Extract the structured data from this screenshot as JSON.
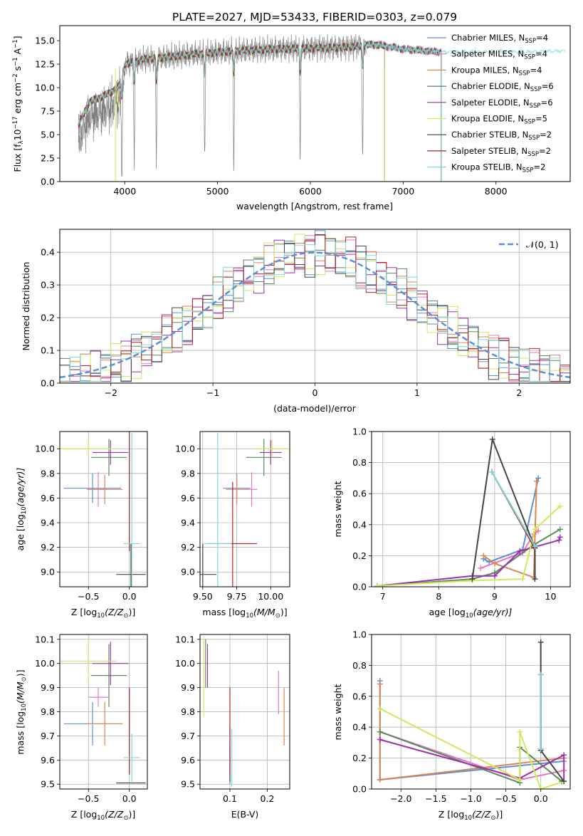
{
  "figure_title": "PLATE=2027, MJD=53433, FIBERID=0303, z=0.079",
  "colors": {
    "Chabrier MILES": "#5b8fd8",
    "Salpeter MILES": "#e377c2",
    "Kroupa MILES": "#dd8452",
    "Chabrier ELODIE": "#5a8a5a",
    "Salpeter ELODIE": "#9b30b0",
    "Kroupa ELODIE": "#d0e85a",
    "Chabrier STELIB": "#444444",
    "Salpeter STELIB": "#b22222",
    "Kroupa STELIB": "#7fd8d8",
    "data": "#808080",
    "gauss": "#5b8fd8",
    "grid": "#b0b0b0"
  },
  "chart_data": [
    {
      "id": "spectrum",
      "type": "line",
      "title": "PLATE=2027, MJD=53433, FIBERID=0303, z=0.079",
      "xlabel": "wavelength [Angstrom, rest frame]",
      "ylabel_main": "Flux [f",
      "ylabel_sub": "λ",
      "ylabel_rest": "10",
      "ylabel_sup1": "−17",
      "ylabel_tail": " erg cm",
      "ylabel_sup2": "−2",
      "ylabel_tail2": " s",
      "ylabel_sup3": "−1",
      "ylabel_tail3": " A",
      "ylabel_sup4": "−1",
      "ylabel_end": "]",
      "xlim": [
        3300,
        8800
      ],
      "ylim": [
        0,
        16.6
      ],
      "grid": false,
      "legend_position": "right",
      "xticks": [
        4000,
        5000,
        6000,
        7000,
        8000
      ],
      "yticks": [
        0.0,
        2.5,
        5.0,
        7.5,
        10.0,
        12.5,
        15.0
      ],
      "series": [
        {
          "name": "Chabrier MILES",
          "nssp": "4"
        },
        {
          "name": "Salpeter MILES",
          "nssp": "4"
        },
        {
          "name": "Kroupa MILES",
          "nssp": "4"
        },
        {
          "name": "Chabrier ELODIE",
          "nssp": "6"
        },
        {
          "name": "Salpeter ELODIE",
          "nssp": "6"
        },
        {
          "name": "Kroupa ELODIE",
          "nssp": "5"
        },
        {
          "name": "Chabrier STELIB",
          "nssp": "2"
        },
        {
          "name": "Salpeter STELIB",
          "nssp": "2"
        },
        {
          "name": "Kroupa STELIB",
          "nssp": "2"
        }
      ],
      "continuum": [
        [
          3500,
          6.0
        ],
        [
          3620,
          8.5
        ],
        [
          3750,
          9.0
        ],
        [
          3850,
          9.5
        ],
        [
          3950,
          10.3
        ],
        [
          4000,
          12.5
        ],
        [
          4200,
          13.0
        ],
        [
          4500,
          13.3
        ],
        [
          4800,
          13.6
        ],
        [
          5200,
          13.9
        ],
        [
          5600,
          14.1
        ],
        [
          6000,
          14.2
        ],
        [
          6400,
          14.3
        ],
        [
          6700,
          14.6
        ],
        [
          7000,
          14.1
        ],
        [
          7400,
          13.8
        ],
        [
          7800,
          13.8
        ],
        [
          8300,
          13.8
        ],
        [
          8700,
          13.9
        ]
      ],
      "data_range": [
        3500,
        6600
      ],
      "model_ranges": {
        "MILES": [
          3500,
          7410
        ],
        "ELODIE": [
          3500,
          6800
        ],
        "STELIB": [
          3500,
          7410
        ]
      },
      "dips": [
        [
          3933,
          2.0,
          "ELODIE"
        ],
        [
          3968,
          3.0,
          "all"
        ],
        [
          4102,
          10.8,
          "all"
        ],
        [
          4340,
          11.5,
          "all"
        ],
        [
          4861,
          13.0,
          "all"
        ],
        [
          5175,
          13.2,
          "all"
        ],
        [
          5890,
          13.0,
          "all"
        ],
        [
          6563,
          12.6,
          "all"
        ]
      ],
      "cutoffs": [
        [
          3900,
          "Kroupa ELODIE"
        ],
        [
          6800,
          "Kroupa ELODIE"
        ],
        [
          7410,
          "STELIB"
        ]
      ]
    },
    {
      "id": "residuals",
      "type": "histogram",
      "xlabel": "(data-model)/error",
      "ylabel": "Normed distribution",
      "xlim": [
        -2.5,
        2.5
      ],
      "ylim": [
        0,
        0.47
      ],
      "grid": true,
      "legend_position": "top-right",
      "legend_label": "𝒩(0, 1)",
      "xticks": [
        -2,
        -1,
        0,
        1,
        2
      ],
      "xticklabels": [
        "−2",
        "−1",
        "0",
        "1",
        "2"
      ],
      "yticks": [
        0.0,
        0.1,
        0.2,
        0.3,
        0.4
      ],
      "bin_width": 0.1,
      "bin_start": -2.5
    },
    {
      "id": "age_vs_Z",
      "type": "scatter",
      "xlabel_pre": "Z [log",
      "xlabel_sub": "10",
      "xlabel_post": "(Z/Z",
      "xlabel_sun": "⊙",
      "xlabel_end": ")]",
      "ylabel_pre": "age  [log",
      "ylabel_sub": "10",
      "ylabel_post": "(age/yr)]",
      "xlim": [
        -0.85,
        0.22
      ],
      "ylim": [
        8.88,
        10.14
      ],
      "grid": true,
      "xticks": [
        -0.5,
        0.0
      ],
      "xticklabels": [
        "−0.5",
        "0.0"
      ],
      "yticks": [
        9.0,
        9.2,
        9.4,
        9.6,
        9.8,
        10.0
      ],
      "points": [
        {
          "series": "Chabrier MILES",
          "x": -0.45,
          "xerr": 0.35,
          "y": 9.68,
          "yerr": 0.12
        },
        {
          "series": "Salpeter MILES",
          "x": -0.38,
          "xerr": 0.12,
          "y": 9.67,
          "yerr": 0.14
        },
        {
          "series": "Kroupa MILES",
          "x": -0.3,
          "xerr": 0.22,
          "y": 9.67,
          "yerr": 0.12
        },
        {
          "series": "Chabrier ELODIE",
          "x": -0.25,
          "xerr": 0.22,
          "y": 9.93,
          "yerr": 0.15
        },
        {
          "series": "Salpeter ELODIE",
          "x": -0.23,
          "xerr": 0.22,
          "y": 9.97,
          "yerr": 0.1
        },
        {
          "series": "Kroupa ELODIE",
          "x": -0.5,
          "xerr": 0.35,
          "y": 10.0,
          "yerr": 0.07
        },
        {
          "series": "Chabrier STELIB",
          "x": 0.02,
          "xerr": 0.18,
          "y": 8.98,
          "yerr": 0.25
        },
        {
          "series": "Salpeter STELIB",
          "x": 0.0,
          "xerr": 0.0,
          "y": 9.67,
          "yerr": 0.5
        },
        {
          "series": "Kroupa STELIB",
          "x": 0.03,
          "xerr": 0.1,
          "y": 9.23,
          "yerr": 0.9
        }
      ]
    },
    {
      "id": "age_vs_mass",
      "type": "scatter",
      "xlabel_pre": "mass [log",
      "xlabel_sub": "10",
      "xlabel_post": "(M/M",
      "xlabel_sun": "⊙",
      "xlabel_end": ")]",
      "xlim": [
        9.48,
        10.14
      ],
      "ylim": [
        8.88,
        10.14
      ],
      "grid": true,
      "xticks": [
        9.5,
        9.75,
        10.0
      ],
      "xticklabels": [
        "9.50",
        "9.75",
        "10.00"
      ],
      "yticks": [
        9.0,
        9.2,
        9.4,
        9.6,
        9.8,
        10.0
      ],
      "points": [
        {
          "series": "Chabrier MILES",
          "x": 9.75,
          "xerr": 0.1,
          "y": 9.68,
          "yerr": 0.12
        },
        {
          "series": "Salpeter MILES",
          "x": 9.86,
          "xerr": 0.04,
          "y": 9.67,
          "yerr": 0.14
        },
        {
          "series": "Kroupa MILES",
          "x": 9.75,
          "xerr": 0.08,
          "y": 9.67,
          "yerr": 0.12
        },
        {
          "series": "Chabrier ELODIE",
          "x": 9.95,
          "xerr": 0.13,
          "y": 9.93,
          "yerr": 0.15
        },
        {
          "series": "Salpeter ELODIE",
          "x": 10.0,
          "xerr": 0.08,
          "y": 9.97,
          "yerr": 0.1
        },
        {
          "series": "Kroupa ELODIE",
          "x": 10.01,
          "xerr": 0.12,
          "y": 10.0,
          "yerr": 0.07
        },
        {
          "series": "Chabrier STELIB",
          "x": 9.5,
          "xerr": 0.1,
          "y": 8.98,
          "yerr": 0.25
        },
        {
          "series": "Salpeter STELIB",
          "x": 9.72,
          "xerr": 0.18,
          "y": 9.23,
          "yerr": 0.5
        },
        {
          "series": "Kroupa STELIB",
          "x": 9.61,
          "xerr": 0.1,
          "y": 9.23,
          "yerr": 0.9
        }
      ]
    },
    {
      "id": "weights_vs_age",
      "type": "line",
      "xlabel_pre": "age  [log",
      "xlabel_sub": "10",
      "xlabel_post": "(age/yr)]",
      "ylabel": "mass weight",
      "xlim": [
        6.8,
        10.35
      ],
      "ylim": [
        0,
        1.0
      ],
      "grid": true,
      "xticks": [
        7,
        8,
        9,
        10
      ],
      "yticks": [
        0.0,
        0.2,
        0.4,
        0.6,
        0.8,
        1.0
      ],
      "series": [
        {
          "name": "Chabrier MILES",
          "points": [
            [
              8.8,
              0.18
            ],
            [
              8.9,
              0.16
            ],
            [
              9.5,
              0.24
            ],
            [
              9.78,
              0.7
            ]
          ]
        },
        {
          "name": "Salpeter MILES",
          "points": [
            [
              8.75,
              0.12
            ],
            [
              9.5,
              0.22
            ],
            [
              9.7,
              0.34
            ],
            [
              9.78,
              0.36
            ]
          ]
        },
        {
          "name": "Kroupa MILES",
          "points": [
            [
              8.8,
              0.2
            ],
            [
              9.0,
              0.15
            ],
            [
              9.7,
              0.06
            ],
            [
              9.75,
              0.68
            ]
          ]
        },
        {
          "name": "Chabrier ELODIE",
          "points": [
            [
              6.9,
              0.005
            ],
            [
              8.6,
              0.05
            ],
            [
              9.0,
              0.09
            ],
            [
              9.7,
              0.27
            ],
            [
              10.17,
              0.37
            ]
          ]
        },
        {
          "name": "Salpeter ELODIE",
          "points": [
            [
              6.9,
              0.005
            ],
            [
              8.6,
              0.07
            ],
            [
              9.0,
              0.07
            ],
            [
              9.45,
              0.23
            ],
            [
              10.15,
              0.3
            ],
            [
              10.17,
              0.32
            ]
          ]
        },
        {
          "name": "Kroupa ELODIE",
          "points": [
            [
              6.9,
              0.005
            ],
            [
              8.6,
              0.04
            ],
            [
              9.5,
              0.05
            ],
            [
              9.72,
              0.37
            ],
            [
              10.17,
              0.52
            ]
          ]
        },
        {
          "name": "Chabrier STELIB",
          "points": [
            [
              8.6,
              0.05
            ],
            [
              8.96,
              0.95
            ],
            [
              9.72,
              0.25
            ],
            [
              9.72,
              0.05
            ]
          ]
        },
        {
          "name": "Salpeter STELIB",
          "points": [
            [
              8.95,
              0.74
            ],
            [
              9.7,
              0.26
            ]
          ]
        },
        {
          "name": "Kroupa STELIB",
          "points": [
            [
              8.95,
              0.74
            ],
            [
              9.72,
              0.26
            ]
          ]
        }
      ]
    },
    {
      "id": "mass_vs_Z",
      "type": "scatter",
      "xlabel_pre": "Z [log",
      "xlabel_sub": "10",
      "xlabel_post": "(Z/Z",
      "xlabel_sun": "⊙",
      "xlabel_end": ")]",
      "ylabel_pre": "mass [log",
      "ylabel_sub": "10",
      "ylabel_post": "(M/M",
      "ylabel_sun": "⊙",
      "ylabel_end": ")]",
      "xlim": [
        -0.85,
        0.22
      ],
      "ylim": [
        9.48,
        10.12
      ],
      "grid": true,
      "xticks": [
        -0.5,
        0.0
      ],
      "xticklabels": [
        "−0.5",
        "0.0"
      ],
      "yticks": [
        9.5,
        9.6,
        9.7,
        9.8,
        9.9,
        10.0,
        10.1
      ],
      "points": [
        {
          "series": "Chabrier MILES",
          "x": -0.45,
          "xerr": 0.35,
          "y": 9.75,
          "yerr": 0.09
        },
        {
          "series": "Salpeter MILES",
          "x": -0.38,
          "xerr": 0.12,
          "y": 9.86,
          "yerr": 0.04
        },
        {
          "series": "Kroupa MILES",
          "x": -0.3,
          "xerr": 0.22,
          "y": 9.75,
          "yerr": 0.09
        },
        {
          "series": "Chabrier ELODIE",
          "x": -0.25,
          "xerr": 0.22,
          "y": 9.95,
          "yerr": 0.13
        },
        {
          "series": "Salpeter ELODIE",
          "x": -0.23,
          "xerr": 0.22,
          "y": 10.0,
          "yerr": 0.09
        },
        {
          "series": "Kroupa ELODIE",
          "x": -0.5,
          "xerr": 0.35,
          "y": 10.01,
          "yerr": 0.09
        },
        {
          "series": "Chabrier STELIB",
          "x": 0.02,
          "xerr": 0.18,
          "y": 9.505,
          "yerr": 0.0
        },
        {
          "series": "Salpeter STELIB",
          "x": 0.0,
          "xerr": 0.0,
          "y": 9.72,
          "yerr": 0.18
        },
        {
          "series": "Kroupa STELIB",
          "x": 0.03,
          "xerr": 0.1,
          "y": 9.61,
          "yerr": 0.1
        }
      ]
    },
    {
      "id": "mass_vs_EBV",
      "type": "scatter",
      "xlabel": "E(B-V)",
      "xlim": [
        0.02,
        0.26
      ],
      "ylim": [
        9.48,
        10.12
      ],
      "grid": true,
      "xticks": [
        0.1,
        0.2
      ],
      "xticklabels": [
        "0.1",
        "0.2"
      ],
      "yticks": [
        9.5,
        9.6,
        9.7,
        9.8,
        9.9,
        10.0,
        10.1
      ],
      "points": [
        {
          "series": "Chabrier MILES",
          "x": 0.1,
          "y": 9.62,
          "yerr": 0.12
        },
        {
          "series": "Salpeter MILES",
          "x": 0.23,
          "y": 9.88,
          "yerr": 0.09
        },
        {
          "series": "Kroupa MILES",
          "x": 0.245,
          "y": 9.78,
          "yerr": 0.12
        },
        {
          "series": "Chabrier ELODIE",
          "x": 0.035,
          "y": 10.0,
          "yerr": 0.1
        },
        {
          "series": "Salpeter ELODIE",
          "x": 0.04,
          "y": 9.99,
          "yerr": 0.09
        },
        {
          "series": "Kroupa ELODIE",
          "x": 0.03,
          "y": 9.94,
          "yerr": 0.16
        },
        {
          "series": "Chabrier STELIB",
          "x": 0.1,
          "y": 9.58,
          "yerr": 0.07
        },
        {
          "series": "Salpeter STELIB",
          "x": 0.1,
          "y": 9.72,
          "yerr": 0.18
        },
        {
          "series": "Kroupa STELIB",
          "x": 0.105,
          "y": 9.61,
          "yerr": 0.12
        }
      ]
    },
    {
      "id": "weights_vs_Z",
      "type": "line",
      "xlabel_pre": "Z [log",
      "xlabel_sub": "10",
      "xlabel_post": "(Z/Z",
      "xlabel_sun": "⊙",
      "xlabel_end": ")]",
      "ylabel": "mass weight",
      "xlim": [
        -2.42,
        0.42
      ],
      "ylim": [
        0,
        1.0
      ],
      "grid": true,
      "xticks": [
        -2.0,
        -1.5,
        -1.0,
        -0.5,
        0.0
      ],
      "xticklabels": [
        "−2.0",
        "−1.5",
        "−1.0",
        "−0.5",
        "0.0"
      ],
      "yticks": [
        0.0,
        0.2,
        0.4,
        0.6,
        0.8,
        1.0
      ],
      "series": [
        {
          "name": "Chabrier MILES",
          "points": [
            [
              -2.3,
              0.7
            ],
            [
              -2.3,
              0.06
            ],
            [
              0.33,
              0.18
            ]
          ]
        },
        {
          "name": "Salpeter MILES",
          "points": [
            [
              -2.3,
              0.37
            ],
            [
              -0.3,
              0.06
            ],
            [
              0.33,
              0.12
            ]
          ]
        },
        {
          "name": "Kroupa MILES",
          "points": [
            [
              -2.3,
              0.68
            ],
            [
              -2.3,
              0.06
            ],
            [
              0.33,
              0.2
            ]
          ]
        },
        {
          "name": "Chabrier ELODIE",
          "points": [
            [
              -2.3,
              0.37
            ],
            [
              -0.3,
              0.04
            ],
            [
              -0.3,
              0.27
            ],
            [
              0.3,
              0.05
            ]
          ]
        },
        {
          "name": "Salpeter ELODIE",
          "points": [
            [
              -2.3,
              0.32
            ],
            [
              -0.3,
              0.07
            ],
            [
              0.33,
              0.22
            ],
            [
              0.33,
              0.05
            ]
          ]
        },
        {
          "name": "Kroupa ELODIE",
          "points": [
            [
              -2.3,
              0.52
            ],
            [
              -0.3,
              0.06
            ],
            [
              -0.3,
              0.37
            ],
            [
              0.0,
              0.0
            ],
            [
              0.33,
              0.05
            ]
          ]
        },
        {
          "name": "Chabrier STELIB",
          "points": [
            [
              0.0,
              0.95
            ],
            [
              0.0,
              0.25
            ],
            [
              0.33,
              0.05
            ]
          ]
        },
        {
          "name": "Salpeter STELIB",
          "points": [
            [
              0.0,
              0.74
            ],
            [
              0.0,
              0.26
            ]
          ]
        },
        {
          "name": "Kroupa STELIB",
          "points": [
            [
              0.0,
              0.74
            ],
            [
              0.0,
              0.26
            ]
          ]
        }
      ]
    }
  ]
}
